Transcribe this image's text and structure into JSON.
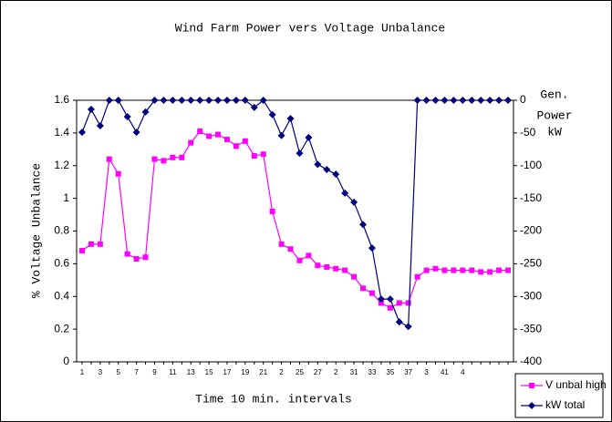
{
  "chart_data": {
    "type": "line",
    "title": "Wind Farm Power vers Voltage Unbalance",
    "x_label": "Time 10 min. intervals",
    "y_label": "% Voltage Unbalance",
    "y2_label": [
      "Gen.",
      "Power",
      "kW"
    ],
    "categories": [
      "1",
      null,
      "3",
      null,
      "5",
      null,
      "7",
      null,
      "9",
      null,
      "11",
      null,
      "13",
      null,
      "15",
      null,
      "17",
      null,
      "19",
      null,
      "21",
      null,
      "2",
      null,
      "25",
      null,
      "27",
      null,
      "2",
      null,
      "31",
      null,
      "33",
      null,
      "35",
      null,
      "37",
      null,
      "3",
      null,
      "41",
      null,
      "4",
      null,
      null,
      null,
      null,
      null
    ],
    "series": [
      {
        "name": "V unbal high",
        "color": "#ff00ff",
        "marker": "square",
        "values": [
          0.68,
          0.72,
          0.72,
          1.24,
          1.15,
          0.66,
          0.63,
          0.64,
          1.24,
          1.23,
          1.25,
          1.25,
          1.34,
          1.41,
          1.38,
          1.39,
          1.36,
          1.32,
          1.35,
          1.26,
          1.27,
          0.92,
          0.72,
          0.69,
          0.62,
          0.65,
          0.59,
          0.58,
          0.57,
          0.56,
          0.52,
          0.45,
          0.42,
          0.36,
          0.33,
          0.36,
          0.36,
          0.52,
          0.56,
          0.57,
          0.56,
          0.56,
          0.56,
          0.56,
          0.55,
          0.55,
          0.56,
          0.56
        ]
      },
      {
        "name": "kW total",
        "color": "#000080",
        "marker": "diamond",
        "axis": "y2",
        "values": [
          -49,
          -14,
          -39,
          0,
          0,
          -25,
          -49,
          -18,
          0,
          0,
          0,
          0,
          0,
          0,
          0,
          0,
          0,
          0,
          0,
          -11,
          0,
          -22,
          -54,
          -28,
          -81,
          -57,
          -98,
          -106,
          -113,
          -142,
          -156,
          -190,
          -226,
          -304,
          -304,
          -339,
          -346,
          0,
          0,
          0,
          0,
          0,
          0,
          0,
          0,
          0,
          0,
          0
        ]
      }
    ],
    "ylim": [
      0,
      1.6
    ],
    "yticks": [
      0,
      0.2,
      0.4,
      0.6,
      0.8,
      1,
      1.2,
      1.4,
      1.6
    ],
    "y2lim": [
      -400,
      0
    ],
    "y2ticks": [
      -400,
      -350,
      -300,
      -250,
      -200,
      -150,
      -100,
      -50,
      0
    ],
    "grid": false,
    "legend": "lower right"
  }
}
